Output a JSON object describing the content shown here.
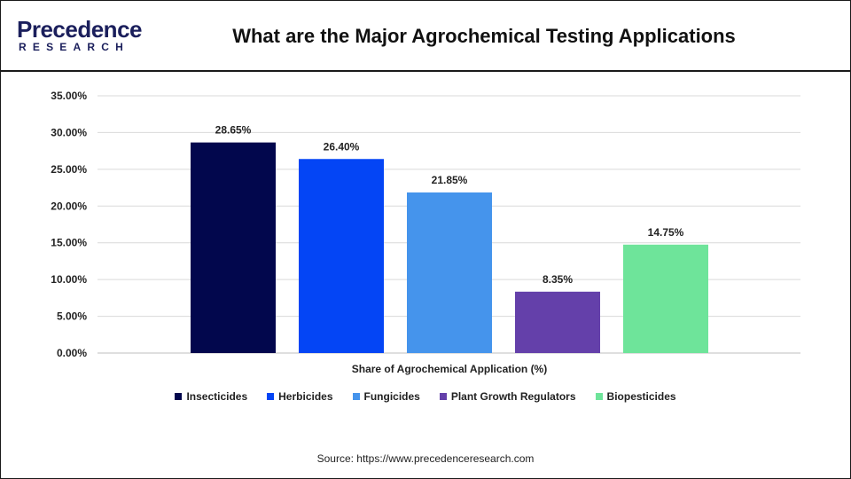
{
  "header": {
    "logo_main": "Precedence",
    "logo_sub": "RESEARCH",
    "title": "What are the Major Agrochemical Testing Applications"
  },
  "chart_data": {
    "type": "bar",
    "title": "What are the Major Agrochemical Testing Applications",
    "xlabel": "Share of Agrochemical Application (%)",
    "ylabel": "",
    "ylim": [
      0,
      35
    ],
    "yticks": [
      "0.00%",
      "5.00%",
      "10.00%",
      "15.00%",
      "20.00%",
      "25.00%",
      "30.00%",
      "35.00%"
    ],
    "grid": true,
    "legend_position": "bottom",
    "categories": [
      "Insecticides",
      "Herbicides",
      "Fungicides",
      "Plant Growth Regulators",
      "Biopesticides"
    ],
    "values": [
      28.65,
      26.4,
      21.85,
      8.35,
      14.75
    ],
    "data_labels": [
      "28.65%",
      "26.40%",
      "21.85%",
      "8.35%",
      "14.75%"
    ],
    "colors": [
      "#02074d",
      "#0445f5",
      "#4594ec",
      "#6440aa",
      "#6ee49a"
    ]
  },
  "footer": {
    "source": "Source: https://www.precedenceresearch.com"
  }
}
